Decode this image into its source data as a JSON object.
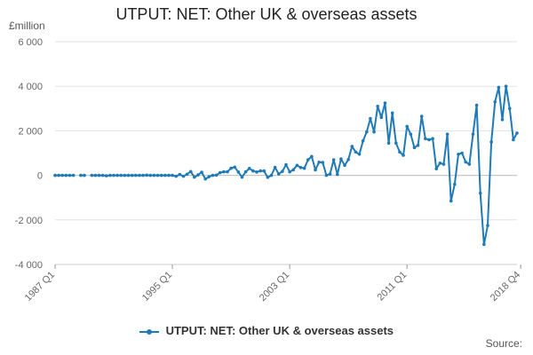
{
  "chart_data": {
    "type": "line",
    "title": "UTPUT: NET: Other UK & overseas assets",
    "ylabel": "£million",
    "ylim": [
      -4000,
      6000
    ],
    "yticks": [
      -4000,
      -2000,
      0,
      2000,
      4000,
      6000
    ],
    "ytick_labels": [
      "-4 000",
      "-2 000",
      "0",
      "2 000",
      "4 000",
      "6 000"
    ],
    "xtick_labels": [
      "1987 Q1",
      "1995 Q1",
      "2003 Q1",
      "2011 Q1",
      "2018 Q4"
    ],
    "xtick_index": [
      0,
      32,
      64,
      96,
      127
    ],
    "legend_position": "bottom",
    "grid": "horizontal",
    "color": "#1f7ab8",
    "series": [
      {
        "name": "UTPUT: NET: Other UK & overseas assets",
        "start": "1987 Q1",
        "end": "2018 Q4",
        "values": [
          0,
          0,
          0,
          0,
          0,
          0,
          null,
          0,
          0,
          null,
          0,
          0,
          0,
          0,
          -20,
          0,
          0,
          0,
          0,
          0,
          0,
          0,
          0,
          0,
          0,
          10,
          0,
          0,
          0,
          0,
          0,
          0,
          0,
          -40,
          40,
          -40,
          50,
          170,
          -80,
          20,
          140,
          -160,
          -60,
          0,
          10,
          120,
          160,
          160,
          320,
          370,
          150,
          -80,
          160,
          310,
          200,
          150,
          200,
          200,
          -90,
          0,
          360,
          60,
          180,
          480,
          160,
          250,
          450,
          350,
          320,
          700,
          850,
          250,
          590,
          580,
          0,
          60,
          700,
          40,
          740,
          450,
          710,
          1300,
          1050,
          950,
          1550,
          1950,
          2550,
          1950,
          3100,
          2600,
          3250,
          1450,
          2800,
          1450,
          1050,
          900,
          2200,
          1850,
          1250,
          1350,
          2650,
          1650,
          1600,
          1650,
          300,
          550,
          500,
          1850,
          -1150,
          -400,
          950,
          1000,
          600,
          500,
          1850,
          3150,
          -800,
          -3100,
          -2250,
          1500,
          3300,
          3950,
          2500,
          4000,
          3000,
          1600,
          1900
        ]
      }
    ]
  },
  "legend_label": "UTPUT: NET: Other UK & overseas assets",
  "source_label": "Source:"
}
